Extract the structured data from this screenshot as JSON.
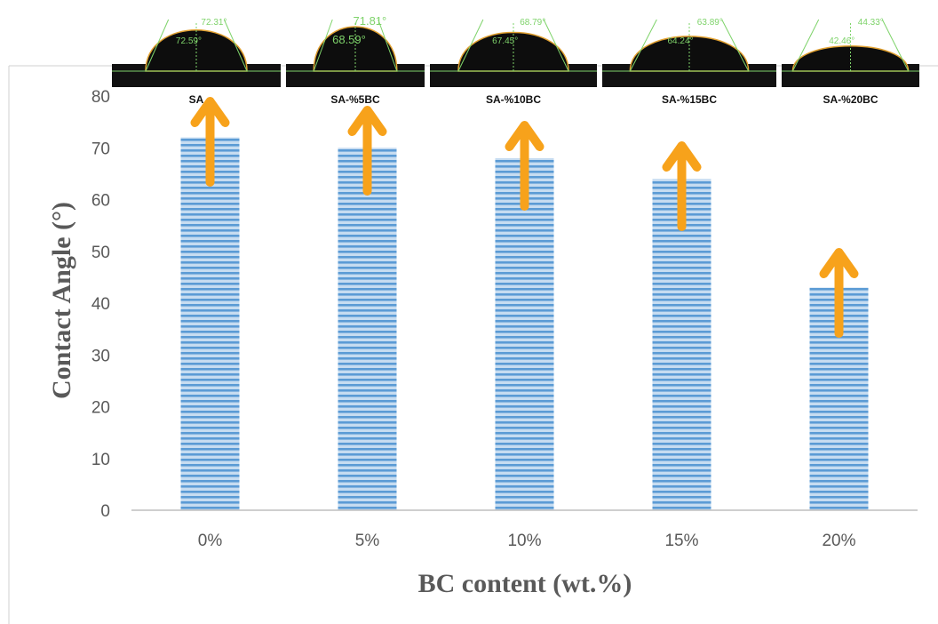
{
  "chart_data": {
    "type": "bar",
    "categories": [
      "0%",
      "5%",
      "10%",
      "15%",
      "20%"
    ],
    "values": [
      72,
      70,
      68,
      64,
      43
    ],
    "xlabel": "BC content (wt.%)",
    "ylabel": "Contact Angle (°)",
    "ylim": [
      0,
      80
    ],
    "yticks": [
      0,
      10,
      20,
      30,
      40,
      50,
      60,
      70,
      80
    ],
    "grid": false,
    "legend": "none",
    "bar_color": "#5b9bd5",
    "arrow_color": "#f7a21b",
    "insets": [
      {
        "sample": "SA",
        "angles": [
          "72.31°",
          "72.59°"
        ]
      },
      {
        "sample": "SA-%5BC",
        "angles": [
          "71.81°",
          "68.59°"
        ]
      },
      {
        "sample": "SA-%10BC",
        "angles": [
          "68.79°",
          "67.45°"
        ]
      },
      {
        "sample": "SA-%15BC",
        "angles": [
          "63.89°",
          "64.24°"
        ]
      },
      {
        "sample": "SA-%20BC",
        "angles": [
          "44.33°",
          "42.46°"
        ]
      }
    ]
  }
}
